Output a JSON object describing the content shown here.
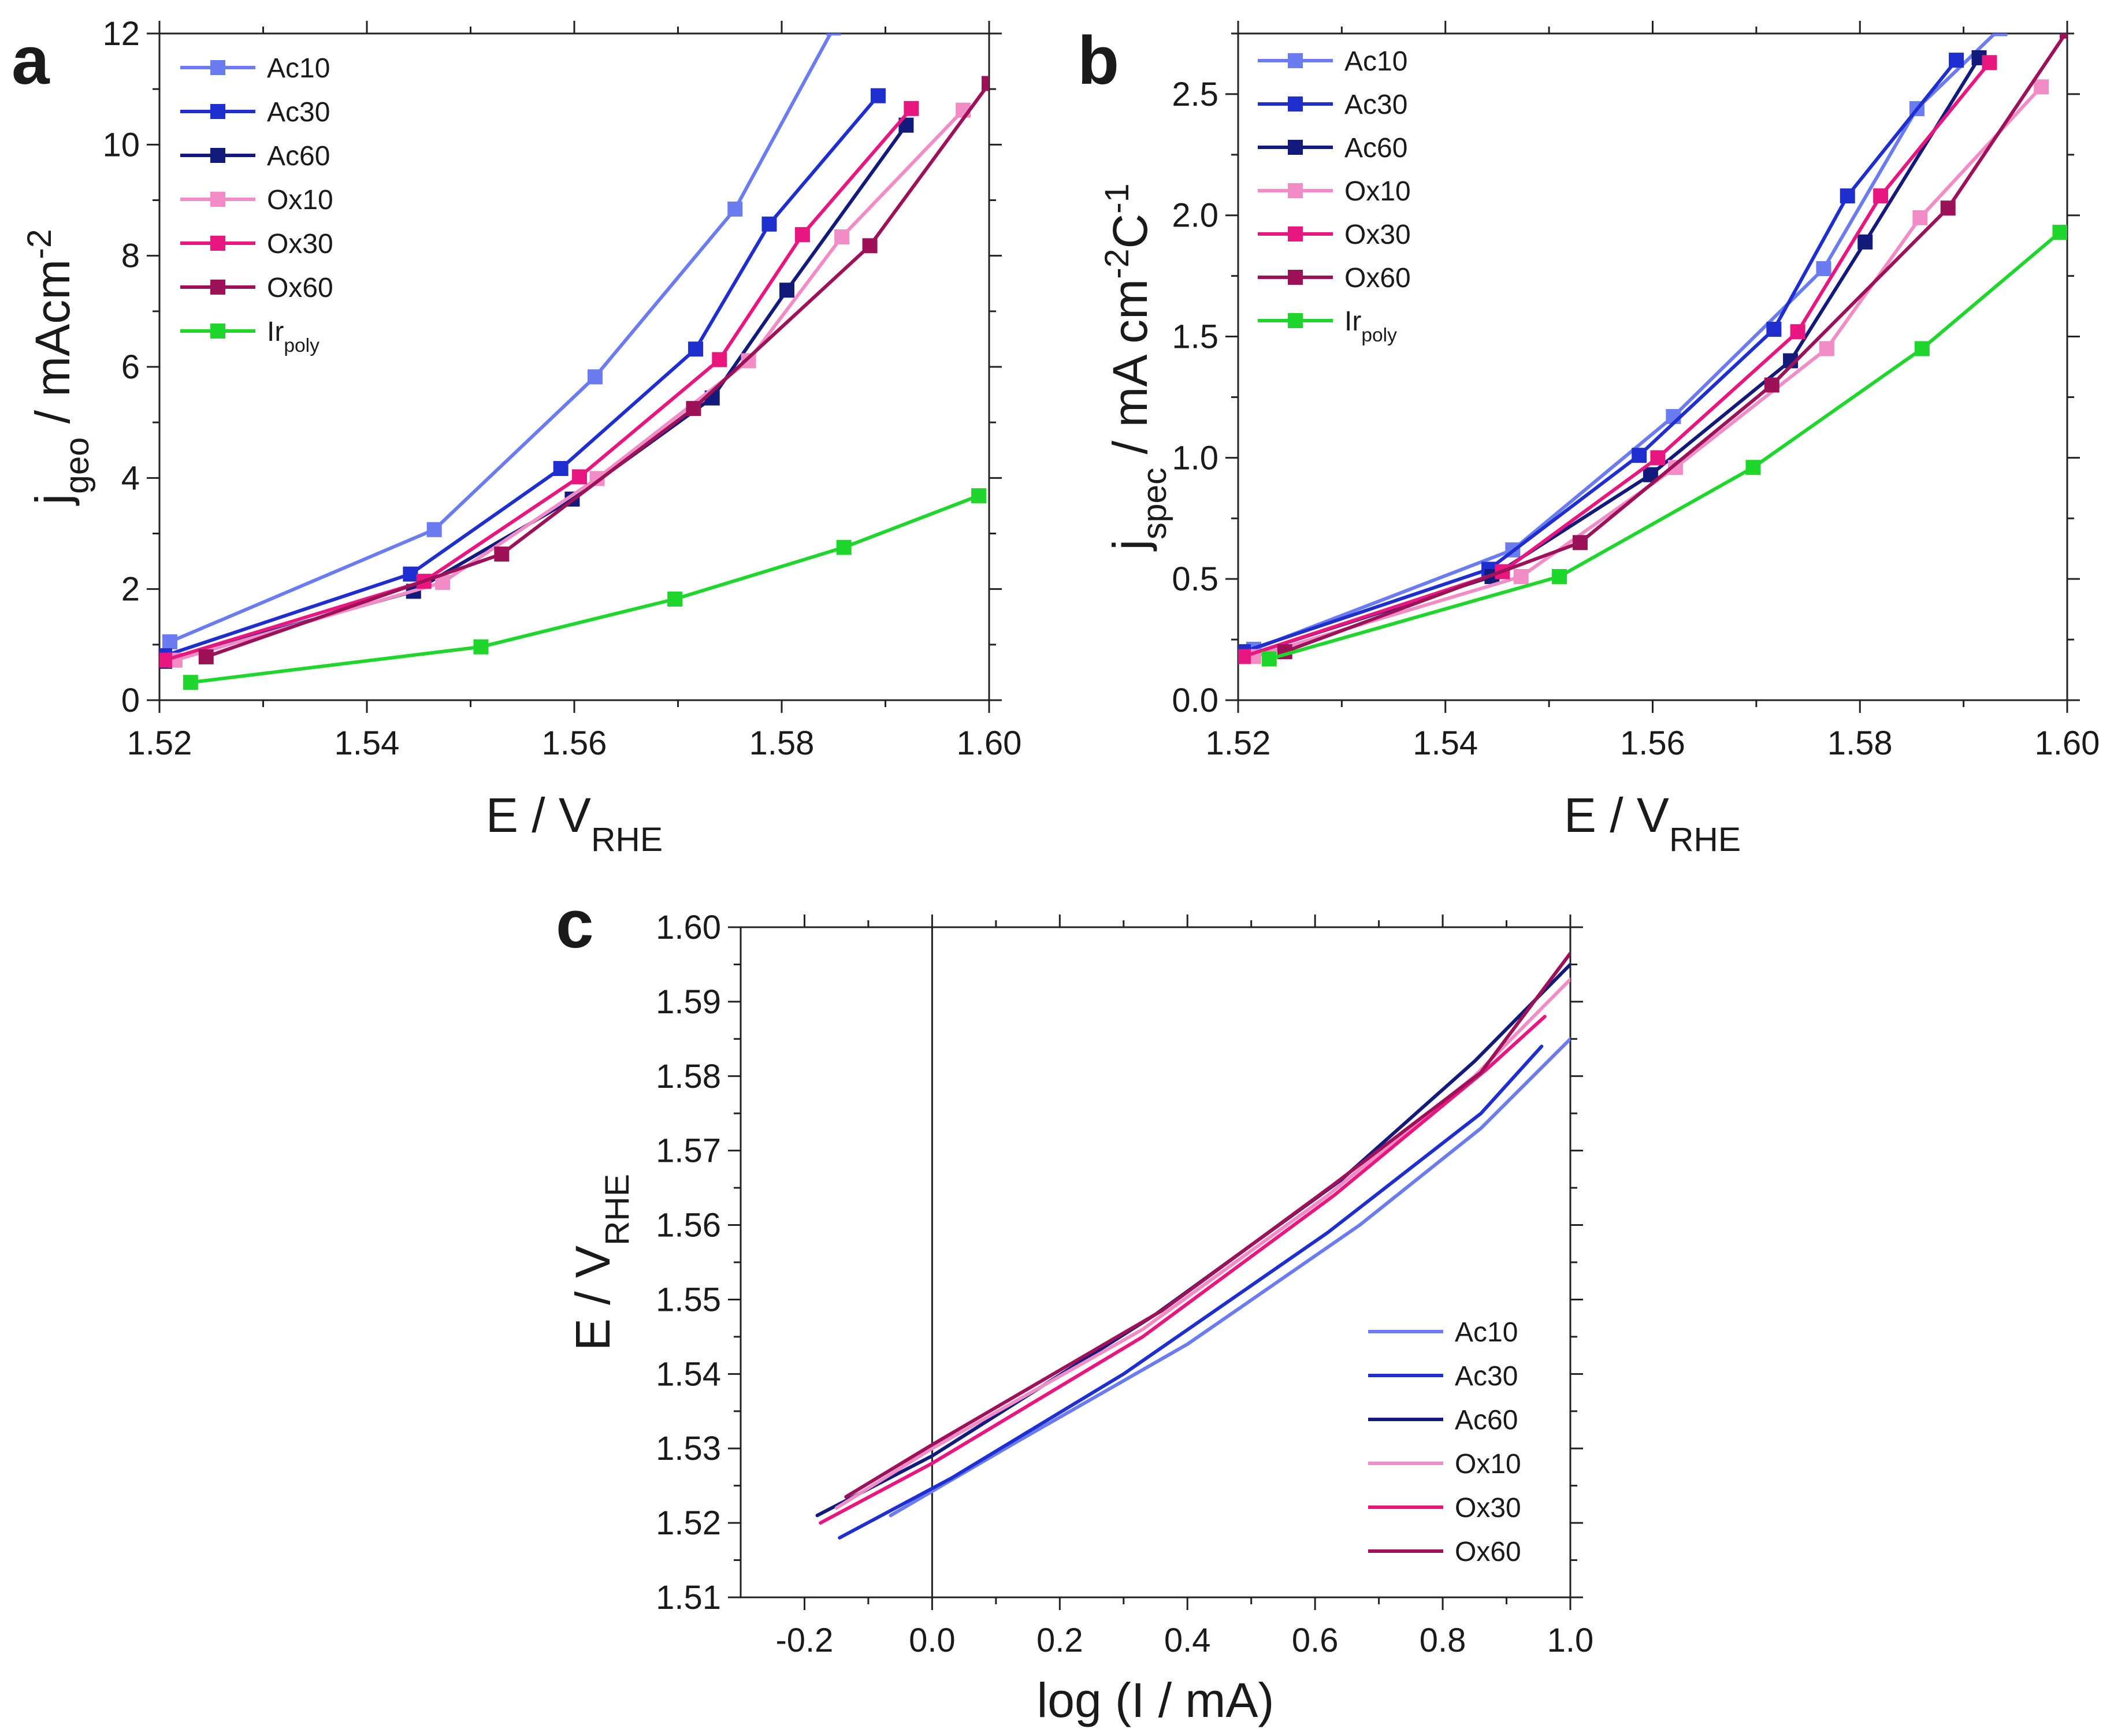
{
  "figure": {
    "colors": {
      "Ac10": "#6a7cf0",
      "Ac30": "#1f2fcf",
      "Ac60": "#131b7a",
      "Ox10": "#f28cc6",
      "Ox30": "#e8177f",
      "Ox60": "#9c1158",
      "Ir_poly": "#1fd62c"
    }
  },
  "chart_data": [
    {
      "id": "a",
      "panel_label": "a",
      "type": "line",
      "markers": "square",
      "xlabel": {
        "main": "E / V",
        "sub": "RHE"
      },
      "ylabel": {
        "main": "j",
        "sub": "geo",
        "rest": " / mAcm",
        "sup": "-2"
      },
      "xlim": [
        1.52,
        1.6
      ],
      "ylim": [
        0,
        12
      ],
      "xticks": [
        "1.52",
        "1.54",
        "1.56",
        "1.58",
        "1.60"
      ],
      "yticks": [
        "0",
        "2",
        "4",
        "6",
        "8",
        "10",
        "12"
      ],
      "legend_position": "top-left",
      "grid": false,
      "series": [
        {
          "name": "Ac10",
          "legend_main": "Ac10",
          "legend_sub": "",
          "x": [
            1.521,
            1.5465,
            1.562,
            1.5755,
            1.585
          ],
          "y": [
            1.05,
            3.07,
            5.82,
            8.84,
            12.1
          ]
        },
        {
          "name": "Ac30",
          "legend_main": "Ac30",
          "legend_sub": "",
          "x": [
            1.5205,
            1.5442,
            1.5587,
            1.5717,
            1.5788,
            1.5893
          ],
          "y": [
            0.8,
            2.27,
            4.17,
            6.32,
            8.57,
            10.88
          ]
        },
        {
          "name": "Ac60",
          "legend_main": "Ac60",
          "legend_sub": "",
          "x": [
            1.5205,
            1.5445,
            1.5598,
            1.5733,
            1.5805,
            1.592
          ],
          "y": [
            0.7,
            1.96,
            3.62,
            5.44,
            7.38,
            10.35
          ]
        },
        {
          "name": "Ox10",
          "legend_main": "Ox10",
          "legend_sub": "",
          "x": [
            1.5215,
            1.5473,
            1.5622,
            1.5768,
            1.5858,
            1.5975
          ],
          "y": [
            0.72,
            2.12,
            3.99,
            6.11,
            8.34,
            10.62
          ]
        },
        {
          "name": "Ox30",
          "legend_main": "Ox30",
          "legend_sub": "",
          "x": [
            1.5205,
            1.5455,
            1.5605,
            1.574,
            1.582,
            1.5925
          ],
          "y": [
            0.72,
            2.14,
            4.02,
            6.13,
            8.38,
            10.65
          ]
        },
        {
          "name": "Ox60",
          "legend_main": "Ox60",
          "legend_sub": "",
          "x": [
            1.5245,
            1.553,
            1.5715,
            1.5885,
            1.6
          ],
          "y": [
            0.78,
            2.63,
            5.25,
            8.18,
            11.1
          ]
        },
        {
          "name": "Ir_poly",
          "legend_main": "Ir",
          "legend_sub": "poly",
          "x": [
            1.523,
            1.551,
            1.5697,
            1.586,
            1.599
          ],
          "y": [
            0.32,
            0.96,
            1.82,
            2.75,
            3.68
          ]
        }
      ]
    },
    {
      "id": "b",
      "panel_label": "b",
      "type": "line",
      "markers": "square",
      "xlabel": {
        "main": "E / V",
        "sub": "RHE"
      },
      "ylabel": {
        "main": "j",
        "sub": "spec",
        "rest": " / mA cm",
        "sup": "-2",
        "rest2": "C",
        "sup2": "-1"
      },
      "xlim": [
        1.52,
        1.6
      ],
      "ylim": [
        0,
        2.75
      ],
      "xticks": [
        "1.52",
        "1.54",
        "1.56",
        "1.58",
        "1.60"
      ],
      "yticks": [
        "0.0",
        "0.5",
        "1.0",
        "1.5",
        "2.0",
        "2.5"
      ],
      "legend_position": "top-left",
      "grid": false,
      "series": [
        {
          "name": "Ac10",
          "legend_main": "Ac10",
          "legend_sub": "",
          "x": [
            1.5215,
            1.5465,
            1.562,
            1.5765,
            1.5855,
            1.5935
          ],
          "y": [
            0.21,
            0.62,
            1.17,
            1.78,
            2.44,
            2.77
          ]
        },
        {
          "name": "Ac30",
          "legend_main": "Ac30",
          "legend_sub": "",
          "x": [
            1.5205,
            1.5442,
            1.5587,
            1.5717,
            1.5788,
            1.5893
          ],
          "y": [
            0.2,
            0.54,
            1.01,
            1.53,
            2.08,
            2.64
          ]
        },
        {
          "name": "Ac60",
          "legend_main": "Ac60",
          "legend_sub": "",
          "x": [
            1.5205,
            1.5445,
            1.5598,
            1.5733,
            1.5805,
            1.5915
          ],
          "y": [
            0.18,
            0.51,
            0.93,
            1.4,
            1.89,
            2.65
          ]
        },
        {
          "name": "Ox10",
          "legend_main": "Ox10",
          "legend_sub": "",
          "x": [
            1.5215,
            1.5473,
            1.5622,
            1.5768,
            1.5858,
            1.5975
          ],
          "y": [
            0.18,
            0.51,
            0.96,
            1.45,
            1.99,
            2.53
          ]
        },
        {
          "name": "Ox30",
          "legend_main": "Ox30",
          "legend_sub": "",
          "x": [
            1.5205,
            1.5455,
            1.5605,
            1.574,
            1.582,
            1.5925
          ],
          "y": [
            0.18,
            0.53,
            1.0,
            1.52,
            2.08,
            2.63
          ]
        },
        {
          "name": "Ox60",
          "legend_main": "Ox60",
          "legend_sub": "",
          "x": [
            1.5245,
            1.553,
            1.5715,
            1.5885,
            1.6
          ],
          "y": [
            0.2,
            0.65,
            1.3,
            2.03,
            2.76
          ]
        },
        {
          "name": "Ir_poly",
          "legend_main": "Ir",
          "legend_sub": "poly",
          "x": [
            1.523,
            1.551,
            1.5697,
            1.586,
            1.5993
          ],
          "y": [
            0.17,
            0.51,
            0.96,
            1.45,
            1.93
          ]
        }
      ]
    },
    {
      "id": "c",
      "panel_label": "c",
      "type": "line",
      "markers": "none",
      "xlabel": {
        "main": "log (I / mA)"
      },
      "ylabel": {
        "main": "E / V",
        "sub": "RHE"
      },
      "xlim": [
        -0.3,
        1.0
      ],
      "ylim": [
        1.51,
        1.6
      ],
      "xticks": [
        "-0.2",
        "0.0",
        "0.2",
        "0.4",
        "0.6",
        "0.8",
        "1.0"
      ],
      "yticks": [
        "1.51",
        "1.52",
        "1.53",
        "1.54",
        "1.55",
        "1.56",
        "1.57",
        "1.58",
        "1.59",
        "1.60"
      ],
      "vertical_line_x": 0,
      "legend_position": "bottom-right",
      "grid": false,
      "series": [
        {
          "name": "Ac10",
          "legend_main": "Ac10",
          "legend_sub": "",
          "x": [
            -0.065,
            0.135,
            0.4,
            0.67,
            0.86,
            1.0
          ],
          "y": [
            1.521,
            1.531,
            1.544,
            1.56,
            1.573,
            1.585
          ]
        },
        {
          "name": "Ac30",
          "legend_main": "Ac30",
          "legend_sub": "",
          "x": [
            -0.145,
            0.03,
            0.3,
            0.62,
            0.86,
            0.955
          ],
          "y": [
            1.518,
            1.526,
            1.54,
            1.559,
            1.575,
            1.584
          ]
        },
        {
          "name": "Ac60",
          "legend_main": "Ac60",
          "legend_sub": "",
          "x": [
            -0.18,
            0.0,
            0.35,
            0.64,
            0.85,
            1.0
          ],
          "y": [
            1.521,
            1.529,
            1.548,
            1.566,
            1.582,
            1.595
          ]
        },
        {
          "name": "Ox10",
          "legend_main": "Ox10",
          "legend_sub": "",
          "x": [
            -0.15,
            0.0,
            0.33,
            0.62,
            0.85,
            1.0
          ],
          "y": [
            1.522,
            1.53,
            1.546,
            1.564,
            1.58,
            1.593
          ]
        },
        {
          "name": "Ox30",
          "legend_main": "Ox30",
          "legend_sub": "",
          "x": [
            -0.175,
            0.0,
            0.33,
            0.63,
            0.87,
            0.96
          ],
          "y": [
            1.52,
            1.528,
            1.545,
            1.564,
            1.581,
            1.588
          ]
        },
        {
          "name": "Ox60",
          "legend_main": "Ox60",
          "legend_sub": "",
          "x": [
            -0.135,
            0.0,
            0.36,
            0.63,
            0.86,
            1.0
          ],
          "y": [
            1.5235,
            1.5305,
            1.5485,
            1.5655,
            1.5805,
            1.5965
          ]
        }
      ]
    }
  ]
}
